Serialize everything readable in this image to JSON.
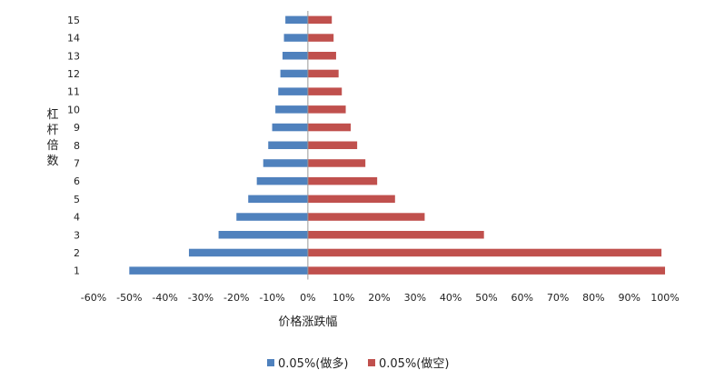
{
  "chart_data": {
    "type": "bar",
    "orientation": "horizontal",
    "categories": [
      "1",
      "2",
      "3",
      "4",
      "5",
      "6",
      "7",
      "8",
      "9",
      "10",
      "11",
      "12",
      "13",
      "14",
      "15"
    ],
    "series": [
      {
        "name": "0.05%(做多)",
        "color": "#4F81BD",
        "values": [
          -50,
          -33.3,
          -25,
          -20,
          -16.7,
          -14.3,
          -12.5,
          -11.1,
          -10,
          -9.1,
          -8.3,
          -7.7,
          -7.1,
          -6.7,
          -6.3
        ]
      },
      {
        "name": "0.05%(做空)",
        "color": "#C0504D",
        "values": [
          100,
          99,
          49.3,
          32.7,
          24.4,
          19.4,
          16.1,
          13.8,
          12,
          10.6,
          9.5,
          8.6,
          7.9,
          7.2,
          6.7
        ]
      }
    ],
    "xlim": [
      -60,
      100
    ],
    "xticks": [
      "-60%",
      "-50%",
      "-40%",
      "-30%",
      "-20%",
      "-10%",
      "0%",
      "10%",
      "20%",
      "30%",
      "40%",
      "50%",
      "60%",
      "70%",
      "80%",
      "90%",
      "100%"
    ],
    "xlabel": "价格涨跌幅",
    "ylabel": "杠杆倍数",
    "legend_position": "bottom",
    "grid": false
  }
}
